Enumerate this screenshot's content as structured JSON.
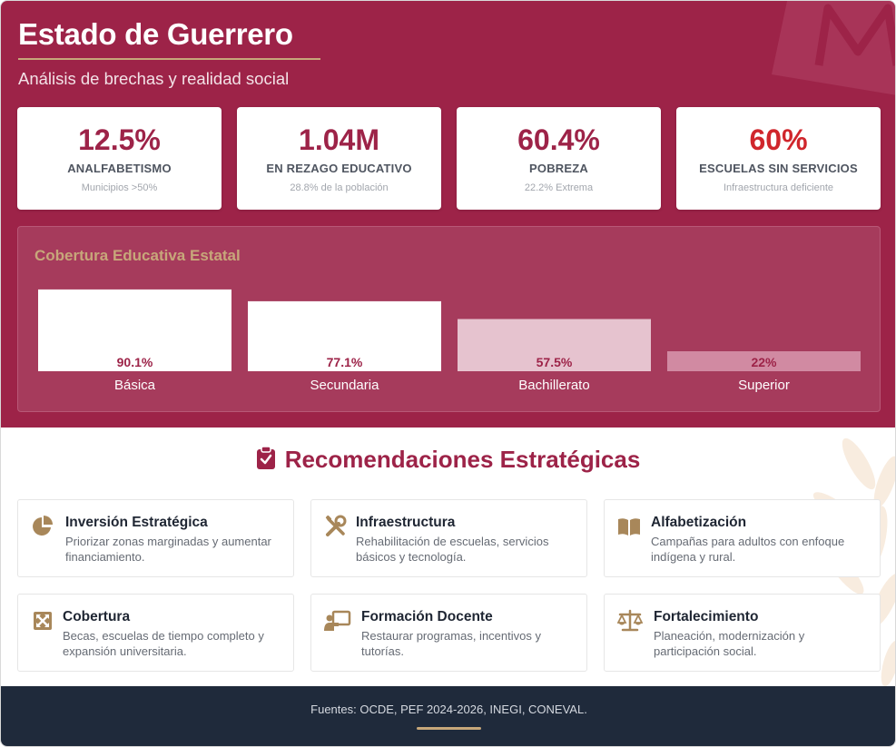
{
  "header": {
    "title": "Estado de Guerrero",
    "subtitle": "Análisis de brechas y realidad social"
  },
  "kpis": [
    {
      "value": "12.5%",
      "label": "ANALFABETISMO",
      "note": "Municipios >50%",
      "alert": false
    },
    {
      "value": "1.04M",
      "label": "EN REZAGO EDUCATIVO",
      "note": "28.8% de la población",
      "alert": false
    },
    {
      "value": "60.4%",
      "label": "POBREZA",
      "note": "22.2% Extrema",
      "alert": false
    },
    {
      "value": "60%",
      "label": "ESCUELAS SIN SERVICIOS",
      "note": "Infraestructura deficiente",
      "alert": true
    }
  ],
  "chart_data": {
    "type": "bar",
    "title": "Cobertura Educativa Estatal",
    "categories": [
      "Básica",
      "Secundaria",
      "Bachillerato",
      "Superior"
    ],
    "values": [
      90.1,
      77.1,
      57.5,
      22
    ],
    "value_labels": [
      "90.1%",
      "77.1%",
      "57.5%",
      "22%"
    ],
    "ylim": [
      0,
      100
    ],
    "grid": false,
    "bar_colors": [
      "#ffffff",
      "#ffffff",
      "#e6c3cf",
      "#d18aa2"
    ],
    "label_color": "#9d2348"
  },
  "recommendations": {
    "title": "Recomendaciones Estratégicas",
    "items": [
      {
        "title": "Inversión Estratégica",
        "desc": "Priorizar zonas marginadas y aumentar financiamiento.",
        "icon": "pie-chart-icon"
      },
      {
        "title": "Infraestructura",
        "desc": "Rehabilitación de escuelas, servicios básicos y tecnología.",
        "icon": "tools-icon"
      },
      {
        "title": "Alfabetización",
        "desc": "Campañas para adultos con enfoque indígena y rural.",
        "icon": "book-open-icon"
      },
      {
        "title": "Cobertura",
        "desc": "Becas, escuelas de tiempo completo y expansión universitaria.",
        "icon": "expand-arrows-icon"
      },
      {
        "title": "Formación Docente",
        "desc": "Restaurar programas, incentivos y tutorías.",
        "icon": "chalkboard-teacher-icon"
      },
      {
        "title": "Fortalecimiento",
        "desc": "Planeación, modernización y participación social.",
        "icon": "balance-scale-icon"
      }
    ]
  },
  "footer": {
    "sources": "Fuentes: OCDE, PEF 2024-2026, INEGI, CONEVAL."
  },
  "colors": {
    "brand": "#9d2348",
    "accent_gold": "#c7a77a",
    "alert": "#d0262c",
    "footer_bg": "#1f2a3b"
  }
}
